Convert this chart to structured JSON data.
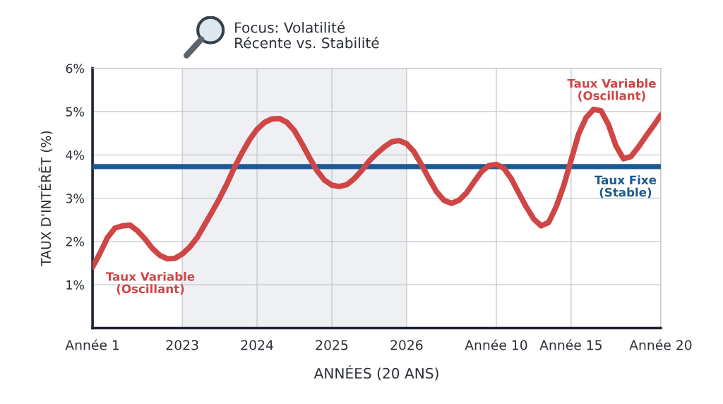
{
  "chart_data": {
    "type": "line",
    "xlabel": "ANNÉES (20 ANS)",
    "ylabel": "TAUX D'INTÉRÊT (%)",
    "categories": [
      "Année 1",
      null,
      null,
      null,
      null,
      null,
      null,
      null,
      null,
      null,
      null,
      null,
      "2023",
      null,
      null,
      null,
      null,
      null,
      null,
      null,
      null,
      null,
      "2024",
      null,
      null,
      null,
      null,
      null,
      null,
      null,
      null,
      null,
      "2025",
      null,
      null,
      null,
      null,
      null,
      null,
      null,
      null,
      null,
      "2026",
      null,
      null,
      null,
      null,
      null,
      null,
      null,
      null,
      null,
      null,
      null,
      "Année 10",
      null,
      null,
      null,
      null,
      null,
      null,
      null,
      null,
      null,
      "Année 15",
      null,
      null,
      null,
      null,
      null,
      null,
      null,
      null,
      null,
      null,
      null,
      "Année 20"
    ],
    "ylim": [
      0,
      6
    ],
    "yticks": [
      {
        "value": 1,
        "label": "1%"
      },
      {
        "value": 2,
        "label": "2%"
      },
      {
        "value": 3,
        "label": "3%"
      },
      {
        "value": 4,
        "label": "4%"
      },
      {
        "value": 5,
        "label": "5%"
      },
      {
        "value": 6,
        "label": "6%"
      }
    ],
    "grid": true,
    "line_style": "solid",
    "bands": [
      {
        "axis": "x",
        "from": "2023",
        "to": "2026",
        "label": "Focus: Volatilité\nRécente vs. Stabilité",
        "color": "#eef0f4"
      }
    ],
    "ref_lines": [
      {
        "axis": "y",
        "value": 3.73,
        "label": "Taux Fixe\n(Stable)",
        "color": "#1b5a93"
      }
    ],
    "series": [
      {
        "name": "Taux Variable\n(Oscillant)",
        "color": "#d04545",
        "values": [
          1.41,
          1.73,
          2.09,
          2.31,
          2.36,
          2.38,
          2.25,
          2.06,
          1.84,
          1.68,
          1.6,
          1.61,
          1.71,
          1.87,
          2.09,
          2.39,
          2.69,
          3.0,
          3.34,
          3.72,
          4.05,
          4.35,
          4.59,
          4.75,
          4.83,
          4.84,
          4.75,
          4.56,
          4.26,
          3.94,
          3.64,
          3.42,
          3.3,
          3.27,
          3.31,
          3.45,
          3.64,
          3.86,
          4.03,
          4.18,
          4.3,
          4.33,
          4.26,
          4.07,
          3.77,
          3.45,
          3.15,
          2.95,
          2.88,
          2.95,
          3.12,
          3.37,
          3.61,
          3.75,
          3.78,
          3.69,
          3.45,
          3.12,
          2.8,
          2.52,
          2.36,
          2.44,
          2.8,
          3.28,
          3.88,
          4.48,
          4.86,
          5.05,
          5.02,
          4.7,
          4.21,
          3.91,
          3.96,
          4.18,
          4.43,
          4.67,
          4.92
        ]
      }
    ]
  }
}
